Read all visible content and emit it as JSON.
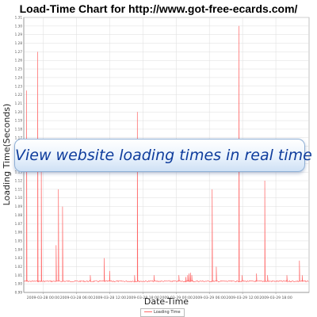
{
  "chart_data": {
    "type": "line",
    "title": "Load-Time Chart for http://www.got-free-ecards.com/",
    "xlabel": "Date-Time",
    "ylabel": "Loading Time(Seconds)",
    "legend": [
      "Loading Time"
    ],
    "legend_placement": "bottom-center",
    "grid": true,
    "ylim": [
      0.99,
      1.31
    ],
    "yticks": [
      0.99,
      1.0,
      1.01,
      1.02,
      1.03,
      1.04,
      1.05,
      1.06,
      1.07,
      1.08,
      1.09,
      1.1,
      1.11,
      1.12,
      1.13,
      1.14,
      1.15,
      1.16,
      1.17,
      1.18,
      1.19,
      1.2,
      1.21,
      1.22,
      1.23,
      1.24,
      1.25,
      1.26,
      1.27,
      1.28,
      1.29,
      1.3,
      1.31
    ],
    "xticks": [
      "2009-03-28 00:00",
      "2009-03-28 06:00",
      "2009-03-28 12:00",
      "2009-03-28 18:00",
      "2009-03-29 00:00",
      "2009-03-29 06:00",
      "2009-03-29 12:00",
      "2009-03-29 18:00"
    ],
    "xlim": [
      "2009-03-27 20:30",
      "2009-03-30 00:00"
    ],
    "baseline": 1.003,
    "series": [
      {
        "name": "Loading Time",
        "color": "#ff6666",
        "spikes": [
          {
            "t": "2009-03-27 21:00",
            "v": 1.225
          },
          {
            "t": "2009-03-27 23:00",
            "v": 1.27
          },
          {
            "t": "2009-03-27 23:40",
            "v": 1.14
          },
          {
            "t": "2009-03-28 02:20",
            "v": 1.045
          },
          {
            "t": "2009-03-28 02:45",
            "v": 1.11
          },
          {
            "t": "2009-03-28 03:30",
            "v": 1.09
          },
          {
            "t": "2009-03-28 08:30",
            "v": 1.01
          },
          {
            "t": "2009-03-28 11:00",
            "v": 1.03
          },
          {
            "t": "2009-03-28 12:00",
            "v": 1.015
          },
          {
            "t": "2009-03-28 16:30",
            "v": 1.01
          },
          {
            "t": "2009-03-28 17:00",
            "v": 1.2
          },
          {
            "t": "2009-03-28 20:00",
            "v": 1.01
          },
          {
            "t": "2009-03-29 00:30",
            "v": 1.01
          },
          {
            "t": "2009-03-29 01:45",
            "v": 1.008
          },
          {
            "t": "2009-03-29 02:05",
            "v": 1.01
          },
          {
            "t": "2009-03-29 02:20",
            "v": 1.012
          },
          {
            "t": "2009-03-29 02:35",
            "v": 1.013
          },
          {
            "t": "2009-03-29 02:50",
            "v": 1.01
          },
          {
            "t": "2009-03-29 06:30",
            "v": 1.11
          },
          {
            "t": "2009-03-29 07:15",
            "v": 1.02
          },
          {
            "t": "2009-03-29 11:20",
            "v": 1.3
          },
          {
            "t": "2009-03-29 11:55",
            "v": 1.01
          },
          {
            "t": "2009-03-29 14:30",
            "v": 1.012
          },
          {
            "t": "2009-03-29 16:00",
            "v": 1.12
          },
          {
            "t": "2009-03-29 16:30",
            "v": 1.01
          },
          {
            "t": "2009-03-29 20:00",
            "v": 1.01
          },
          {
            "t": "2009-03-29 22:15",
            "v": 1.027
          },
          {
            "t": "2009-03-29 22:45",
            "v": 1.01
          }
        ]
      }
    ]
  },
  "banner": {
    "text": "View website loading times in real time"
  }
}
